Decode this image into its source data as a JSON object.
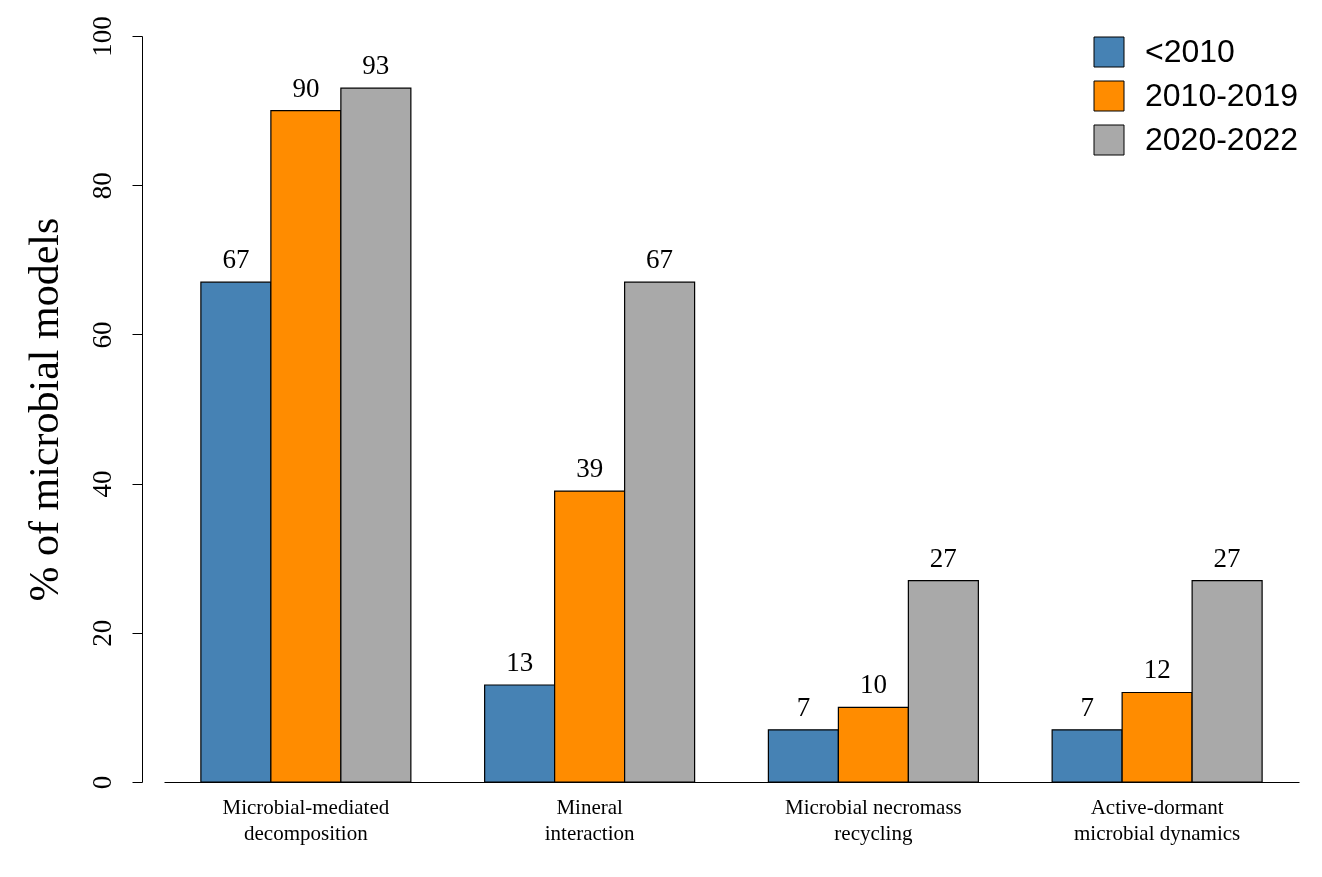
{
  "chart_data": {
    "type": "bar",
    "ylabel": "% of microbial models",
    "categories": [
      "Microbial-mediated\ndecomposition",
      "Mineral\ninteraction",
      "Microbial necromass\nrecycling",
      "Active-dormant\nmicrobial dynamics"
    ],
    "series": [
      {
        "name": "<2010",
        "color": "#4682b4",
        "values": [
          67,
          13,
          7,
          7
        ]
      },
      {
        "name": "2010-2019",
        "color": "#ff8c00",
        "values": [
          90,
          39,
          10,
          12
        ]
      },
      {
        "name": "2020-2022",
        "color": "#a9a9a9",
        "values": [
          93,
          67,
          27,
          27
        ]
      }
    ],
    "ylim": [
      0,
      100
    ],
    "yticks": [
      0,
      20,
      40,
      60,
      80,
      100
    ],
    "data_labels": true,
    "legend": "top right",
    "grid": false
  }
}
